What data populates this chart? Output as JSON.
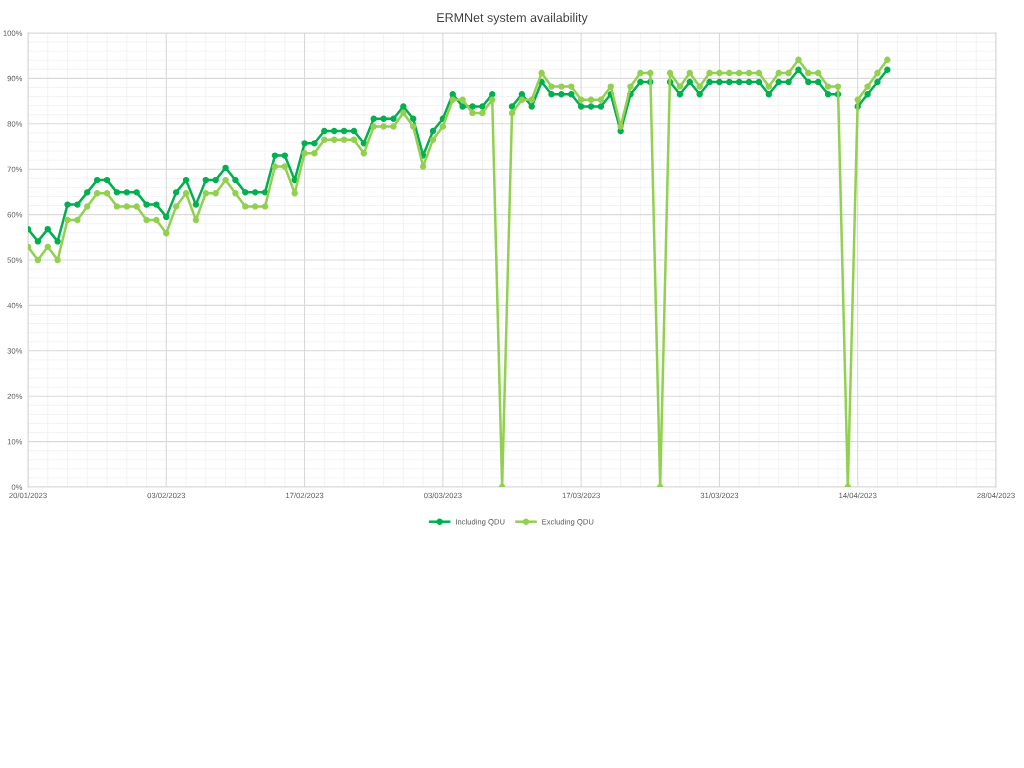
{
  "chart_data": {
    "type": "line",
    "title": "ERMNet system availability",
    "x": [
      "2023-01-20",
      "2023-01-21",
      "2023-01-22",
      "2023-01-23",
      "2023-01-24",
      "2023-01-25",
      "2023-01-26",
      "2023-01-27",
      "2023-01-28",
      "2023-01-29",
      "2023-01-30",
      "2023-01-31",
      "2023-02-01",
      "2023-02-02",
      "2023-02-03",
      "2023-02-04",
      "2023-02-05",
      "2023-02-06",
      "2023-02-07",
      "2023-02-08",
      "2023-02-09",
      "2023-02-10",
      "2023-02-11",
      "2023-02-12",
      "2023-02-13",
      "2023-02-14",
      "2023-02-15",
      "2023-02-16",
      "2023-02-17",
      "2023-02-18",
      "2023-02-19",
      "2023-02-20",
      "2023-02-21",
      "2023-02-22",
      "2023-02-23",
      "2023-02-24",
      "2023-02-25",
      "2023-02-26",
      "2023-02-27",
      "2023-02-28",
      "2023-03-01",
      "2023-03-02",
      "2023-03-03",
      "2023-03-04",
      "2023-03-05",
      "2023-03-06",
      "2023-03-07",
      "2023-03-08",
      "2023-03-09",
      "2023-03-10",
      "2023-03-11",
      "2023-03-12",
      "2023-03-13",
      "2023-03-14",
      "2023-03-15",
      "2023-03-16",
      "2023-03-17",
      "2023-03-18",
      "2023-03-19",
      "2023-03-20",
      "2023-03-21",
      "2023-03-22",
      "2023-03-23",
      "2023-03-24",
      "2023-03-25",
      "2023-03-26",
      "2023-03-27",
      "2023-03-28",
      "2023-03-29",
      "2023-03-30",
      "2023-03-31",
      "2023-04-01",
      "2023-04-02",
      "2023-04-03",
      "2023-04-04",
      "2023-04-05",
      "2023-04-06",
      "2023-04-07",
      "2023-04-08",
      "2023-04-09",
      "2023-04-10",
      "2023-04-11",
      "2023-04-12",
      "2023-04-13",
      "2023-04-14",
      "2023-04-15",
      "2023-04-16",
      "2023-04-17"
    ],
    "series": [
      {
        "name": "Including QDU",
        "color": "#00b050",
        "values": [
          56.8,
          54.1,
          56.8,
          54.1,
          62.2,
          62.2,
          64.9,
          67.6,
          67.6,
          64.9,
          64.9,
          64.9,
          62.2,
          62.2,
          59.5,
          64.9,
          67.6,
          62.2,
          67.6,
          67.6,
          70.3,
          67.6,
          64.9,
          64.9,
          64.9,
          73.0,
          73.0,
          67.6,
          75.7,
          75.7,
          78.4,
          78.4,
          78.4,
          78.4,
          75.7,
          81.1,
          81.1,
          81.1,
          83.8,
          81.1,
          73.0,
          78.4,
          81.1,
          86.5,
          83.8,
          83.8,
          83.8,
          86.5,
          null,
          83.8,
          86.5,
          83.8,
          89.2,
          86.5,
          86.5,
          86.5,
          83.8,
          83.8,
          83.8,
          86.5,
          78.4,
          86.5,
          89.2,
          89.2,
          null,
          89.2,
          86.5,
          89.2,
          86.5,
          89.2,
          89.2,
          89.2,
          89.2,
          89.2,
          89.2,
          86.5,
          89.2,
          89.2,
          91.9,
          89.2,
          89.2,
          86.5,
          86.5,
          null,
          83.8,
          86.5,
          89.2,
          91.9
        ]
      },
      {
        "name": "Excluding QDU",
        "color": "#92d050",
        "values": [
          52.9,
          50.0,
          52.9,
          50.0,
          58.8,
          58.8,
          61.8,
          64.7,
          64.7,
          61.8,
          61.8,
          61.8,
          58.8,
          58.8,
          55.9,
          61.8,
          64.7,
          58.8,
          64.7,
          64.7,
          67.6,
          64.7,
          61.8,
          61.8,
          61.8,
          70.6,
          70.6,
          64.7,
          73.5,
          73.5,
          76.5,
          76.5,
          76.5,
          76.5,
          73.5,
          79.4,
          79.4,
          79.4,
          82.4,
          79.4,
          70.6,
          76.5,
          79.4,
          85.3,
          85.3,
          82.4,
          82.4,
          85.3,
          0,
          82.4,
          85.3,
          85.3,
          91.2,
          88.2,
          88.2,
          88.2,
          85.3,
          85.3,
          85.3,
          88.2,
          79.4,
          88.2,
          91.2,
          91.2,
          0,
          91.2,
          88.2,
          91.2,
          88.2,
          91.2,
          91.2,
          91.2,
          91.2,
          91.2,
          91.2,
          88.2,
          91.2,
          91.2,
          94.1,
          91.2,
          91.2,
          88.2,
          88.2,
          0,
          85.3,
          88.2,
          91.2,
          94.1
        ]
      }
    ],
    "xlim": [
      "2023-01-20",
      "2023-04-28"
    ],
    "xticks": [
      {
        "value": "2023-01-20",
        "label": "20/01/2023"
      },
      {
        "value": "2023-02-03",
        "label": "03/02/2023"
      },
      {
        "value": "2023-02-17",
        "label": "17/02/2023"
      },
      {
        "value": "2023-03-03",
        "label": "03/03/2023"
      },
      {
        "value": "2023-03-17",
        "label": "17/03/2023"
      },
      {
        "value": "2023-03-31",
        "label": "31/03/2023"
      },
      {
        "value": "2023-04-14",
        "label": "14/04/2023"
      },
      {
        "value": "2023-04-28",
        "label": "28/04/2023"
      }
    ],
    "ylim": [
      0,
      100
    ],
    "yticks": [
      {
        "value": 0,
        "label": "0%"
      },
      {
        "value": 10,
        "label": "10%"
      },
      {
        "value": 20,
        "label": "20%"
      },
      {
        "value": 30,
        "label": "30%"
      },
      {
        "value": 40,
        "label": "40%"
      },
      {
        "value": 50,
        "label": "50%"
      },
      {
        "value": 60,
        "label": "60%"
      },
      {
        "value": 70,
        "label": "70%"
      },
      {
        "value": 80,
        "label": "80%"
      },
      {
        "value": 90,
        "label": "90%"
      },
      {
        "value": 100,
        "label": "100%"
      }
    ],
    "grid": true,
    "legend": "bottom",
    "marker": "circle",
    "line_style": "solid"
  }
}
